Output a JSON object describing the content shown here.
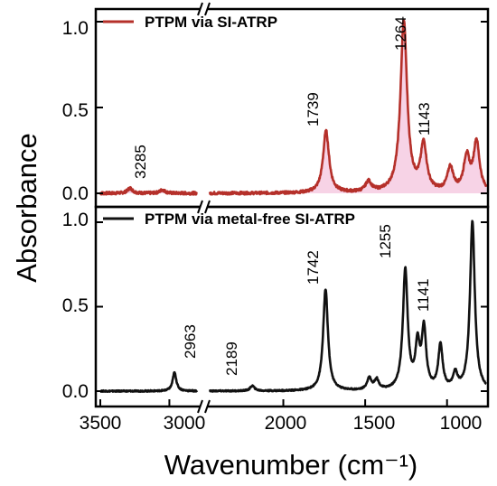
{
  "chart_data": [
    {
      "type": "line",
      "panel": "top",
      "series": [
        {
          "name": "PTPM via SI-ATRP",
          "color": "#b5302a",
          "fill": "#f3c0dc"
        }
      ],
      "peak_labels": [
        "3285",
        "1739",
        "1264",
        "1143"
      ],
      "ylim": [
        -0.05,
        1.1
      ],
      "yticks": [
        "0.0",
        "0.5",
        "1.0"
      ],
      "peaks": [
        {
          "x": 3285,
          "y": 0.03
        },
        {
          "x": 3050,
          "y": 0.02
        },
        {
          "x": 1739,
          "y": 0.36
        },
        {
          "x": 1480,
          "y": 0.06
        },
        {
          "x": 1264,
          "y": 1.0
        },
        {
          "x": 1143,
          "y": 0.27
        },
        {
          "x": 980,
          "y": 0.14
        },
        {
          "x": 880,
          "y": 0.2
        },
        {
          "x": 820,
          "y": 0.29
        }
      ]
    },
    {
      "type": "line",
      "panel": "bottom",
      "series": [
        {
          "name": "PTPM via metal-free SI-ATRP",
          "color": "#111111"
        }
      ],
      "peak_labels": [
        "2963",
        "2189",
        "1742",
        "1255",
        "1141"
      ],
      "ylim": [
        -0.05,
        1.1
      ],
      "yticks": [
        "0.0",
        "0.5",
        "1.0"
      ],
      "peaks": [
        {
          "x": 2963,
          "y": 0.11
        },
        {
          "x": 2189,
          "y": 0.03
        },
        {
          "x": 1742,
          "y": 0.6
        },
        {
          "x": 1475,
          "y": 0.07
        },
        {
          "x": 1430,
          "y": 0.06
        },
        {
          "x": 1255,
          "y": 0.71
        },
        {
          "x": 1180,
          "y": 0.25
        },
        {
          "x": 1141,
          "y": 0.35
        },
        {
          "x": 1040,
          "y": 0.26
        },
        {
          "x": 950,
          "y": 0.09
        },
        {
          "x": 845,
          "y": 1.0
        }
      ]
    }
  ],
  "x_axis": {
    "label": "Wavenumber (cm⁻¹)",
    "ticks": [
      "3500",
      "3000",
      "2000",
      "1500",
      "1000"
    ],
    "break_between": [
      2800,
      2450
    ]
  },
  "y_axis": {
    "label": "Absorbance"
  }
}
